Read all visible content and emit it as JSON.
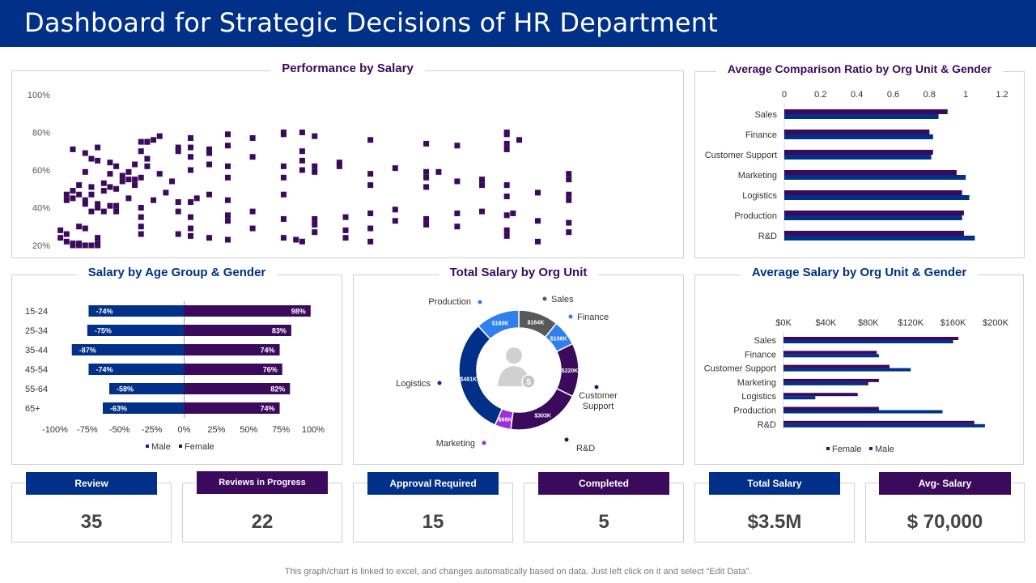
{
  "header": {
    "title": "Dashboard for Strategic Decisions of HR Department"
  },
  "colors": {
    "blue": "#003087",
    "purple": "#3b0a5c",
    "light_blue": "#2f80ed",
    "grey": "#595959",
    "violet": "#9b30d9"
  },
  "chart_data": [
    {
      "id": "performance",
      "type": "scatter",
      "title": "Performance by Salary",
      "xlabel": "",
      "ylabel": "",
      "ylim": [
        20,
        100
      ],
      "yticks": [
        "20%",
        "40%",
        "60%",
        "80%",
        "100%"
      ],
      "x_range": [
        0,
        100
      ],
      "grid": false,
      "points": [
        [
          1,
          28
        ],
        [
          1,
          24
        ],
        [
          2,
          26
        ],
        [
          2,
          22
        ],
        [
          2,
          47
        ],
        [
          2,
          44
        ],
        [
          3,
          21
        ],
        [
          3,
          20
        ],
        [
          3,
          49
        ],
        [
          3,
          45
        ],
        [
          3,
          71
        ],
        [
          4,
          20
        ],
        [
          4,
          30
        ],
        [
          4,
          47
        ],
        [
          4,
          52
        ],
        [
          4,
          21
        ],
        [
          5,
          69
        ],
        [
          5,
          20
        ],
        [
          5,
          59
        ],
        [
          5,
          44
        ],
        [
          5,
          42
        ],
        [
          5,
          29
        ],
        [
          6,
          66
        ],
        [
          6,
          20
        ],
        [
          6,
          38
        ],
        [
          6,
          51
        ],
        [
          6,
          47
        ],
        [
          7,
          20
        ],
        [
          7,
          24
        ],
        [
          7,
          21
        ],
        [
          7,
          40
        ],
        [
          7,
          72
        ],
        [
          7,
          42
        ],
        [
          7,
          65
        ],
        [
          8,
          49
        ],
        [
          8,
          38
        ],
        [
          8,
          53
        ],
        [
          9,
          64
        ],
        [
          9,
          58
        ],
        [
          9,
          41
        ],
        [
          9,
          51
        ],
        [
          10,
          50
        ],
        [
          10,
          62
        ],
        [
          10,
          38
        ],
        [
          10,
          41
        ],
        [
          11,
          57
        ],
        [
          11,
          54
        ],
        [
          12,
          55
        ],
        [
          12,
          59
        ],
        [
          12,
          45
        ],
        [
          13,
          52
        ],
        [
          13,
          63
        ],
        [
          13,
          55
        ],
        [
          14,
          75
        ],
        [
          14,
          70
        ],
        [
          14,
          56
        ],
        [
          14,
          40
        ],
        [
          14,
          35
        ],
        [
          14,
          30
        ],
        [
          14,
          26
        ],
        [
          15,
          75
        ],
        [
          15,
          66
        ],
        [
          15,
          75
        ],
        [
          15,
          62
        ],
        [
          16,
          76
        ],
        [
          16,
          44
        ],
        [
          17,
          78
        ],
        [
          17,
          58
        ],
        [
          18,
          48
        ],
        [
          19,
          54
        ],
        [
          20,
          72
        ],
        [
          20,
          70
        ],
        [
          20,
          43
        ],
        [
          20,
          38
        ],
        [
          20,
          26
        ],
        [
          22,
          77
        ],
        [
          22,
          72
        ],
        [
          22,
          67
        ],
        [
          22,
          60
        ],
        [
          22,
          43
        ],
        [
          22,
          35
        ],
        [
          22,
          29
        ],
        [
          22,
          25
        ],
        [
          23,
          45
        ],
        [
          25,
          71
        ],
        [
          25,
          69
        ],
        [
          25,
          63
        ],
        [
          25,
          47
        ],
        [
          25,
          24
        ],
        [
          28,
          79
        ],
        [
          28,
          73
        ],
        [
          28,
          62
        ],
        [
          28,
          56
        ],
        [
          28,
          44
        ],
        [
          28,
          36
        ],
        [
          28,
          33
        ],
        [
          28,
          23
        ],
        [
          32,
          77
        ],
        [
          32,
          67
        ],
        [
          32,
          38
        ],
        [
          32,
          29
        ],
        [
          37,
          80
        ],
        [
          37,
          79
        ],
        [
          37,
          62
        ],
        [
          37,
          56
        ],
        [
          37,
          47
        ],
        [
          37,
          34
        ],
        [
          37,
          24
        ],
        [
          39,
          23
        ],
        [
          40,
          80
        ],
        [
          40,
          70
        ],
        [
          40,
          65
        ],
        [
          40,
          60
        ],
        [
          40,
          22
        ],
        [
          42,
          78
        ],
        [
          42,
          62
        ],
        [
          42,
          59
        ],
        [
          42,
          34
        ],
        [
          42,
          31
        ],
        [
          42,
          27
        ],
        [
          46,
          64
        ],
        [
          46,
          62
        ],
        [
          47,
          35
        ],
        [
          47,
          28
        ],
        [
          47,
          24
        ],
        [
          51,
          58
        ],
        [
          51,
          52
        ],
        [
          51,
          37
        ],
        [
          51,
          29
        ],
        [
          51,
          22
        ],
        [
          51,
          76
        ],
        [
          55,
          61
        ],
        [
          55,
          39
        ],
        [
          55,
          33
        ],
        [
          60,
          74
        ],
        [
          60,
          59
        ],
        [
          60,
          56
        ],
        [
          60,
          51
        ],
        [
          60,
          34
        ],
        [
          60,
          31
        ],
        [
          62,
          59
        ],
        [
          65,
          73
        ],
        [
          65,
          54
        ],
        [
          65,
          37
        ],
        [
          65,
          30
        ],
        [
          69,
          55
        ],
        [
          69,
          52
        ],
        [
          69,
          38
        ],
        [
          73,
          80
        ],
        [
          73,
          79
        ],
        [
          73,
          74
        ],
        [
          73,
          71
        ],
        [
          73,
          52
        ],
        [
          73,
          46
        ],
        [
          73,
          36
        ],
        [
          73,
          28
        ],
        [
          73,
          25
        ],
        [
          74,
          37
        ],
        [
          75,
          76
        ],
        [
          78,
          48
        ],
        [
          78,
          33
        ],
        [
          78,
          22
        ],
        [
          83,
          58
        ],
        [
          83,
          55
        ],
        [
          83,
          47
        ],
        [
          83,
          44
        ],
        [
          83,
          32
        ],
        [
          83,
          27
        ]
      ]
    },
    {
      "id": "comparison_ratio",
      "type": "bar",
      "orientation": "horizontal",
      "title": "Average Comparison Ratio by Org Unit & Gender",
      "categories": [
        "Sales",
        "Finance",
        "Customer Support",
        "Marketing",
        "Logistics",
        "Production",
        "R&D"
      ],
      "xlim": [
        0,
        1.2
      ],
      "xticks": [
        "0",
        "0.2",
        "0.4",
        "0.6",
        "0.8",
        "1",
        "1.2"
      ],
      "series": [
        {
          "values": [
            0.9,
            0.8,
            0.82,
            0.95,
            0.98,
            0.99,
            0.99
          ]
        },
        {
          "values": [
            0.85,
            0.82,
            0.81,
            1.0,
            1.02,
            0.98,
            1.05
          ]
        }
      ]
    },
    {
      "id": "age_gender",
      "type": "bar",
      "orientation": "horizontal",
      "title": "Salary by Age Group & Gender",
      "categories": [
        "15-24",
        "25-34",
        "35-44",
        "45-54",
        "55-64",
        "65+"
      ],
      "xlim": [
        -100,
        100
      ],
      "xticks": [
        "-100%",
        "-75%",
        "-50%",
        "-25%",
        "0%",
        "25%",
        "50%",
        "75%",
        "100%"
      ],
      "series": [
        {
          "name": "Male",
          "values": [
            -74,
            -75,
            -87,
            -74,
            -58,
            -63
          ],
          "labels": [
            "-74%",
            "-75%",
            "-87%",
            "-74%",
            "-58%",
            "-63%"
          ]
        },
        {
          "name": "Female",
          "values": [
            98,
            83,
            74,
            76,
            82,
            74
          ],
          "labels": [
            "98%",
            "83%",
            "74%",
            "76%",
            "82%",
            "74%"
          ]
        }
      ],
      "legend": "bottom"
    },
    {
      "id": "total_salary",
      "type": "pie",
      "donut": true,
      "title": "Total Salary by Org Unit",
      "slices": [
        {
          "name": "Sales",
          "label": "$164K",
          "value": 164
        },
        {
          "name": "Finance",
          "label": "$106K",
          "value": 106
        },
        {
          "name": "Customer Support",
          "label": "$220K",
          "value": 220
        },
        {
          "name": "R&D",
          "label": "$303K",
          "value": 303
        },
        {
          "name": "Marketing",
          "label": "$66K",
          "value": 66
        },
        {
          "name": "Logistics",
          "label": "$481K",
          "value": 481
        },
        {
          "name": "Production",
          "label": "$180K",
          "value": 180
        }
      ]
    },
    {
      "id": "avg_salary",
      "type": "bar",
      "orientation": "horizontal",
      "title": "Average Salary by Org Unit & Gender",
      "categories": [
        "Sales",
        "Finance",
        "Customer Support",
        "Marketing",
        "Logistics",
        "Production",
        "R&D"
      ],
      "xlim": [
        0,
        200
      ],
      "xticks": [
        "$0K",
        "$40K",
        "$80K",
        "$120K",
        "$160K",
        "$200K"
      ],
      "series": [
        {
          "name": "Female",
          "values": [
            165,
            88,
            100,
            90,
            70,
            90,
            180
          ]
        },
        {
          "name": "Male",
          "values": [
            160,
            90,
            120,
            80,
            30,
            150,
            190
          ]
        }
      ],
      "legend": "bottom"
    }
  ],
  "kpis": [
    {
      "label": "Review",
      "value": "35"
    },
    {
      "label": "Reviews in Progress",
      "value": "22"
    },
    {
      "label": "Approval Required",
      "value": "15"
    },
    {
      "label": "Completed",
      "value": "5"
    },
    {
      "label": "Total Salary",
      "value": "$3.5M"
    },
    {
      "label": "Avg- Salary",
      "value": "$ 70,000"
    }
  ],
  "footnote": "This graph/chart is linked to excel, and changes automatically based on data. Just left click on it and select “Edit Data”."
}
